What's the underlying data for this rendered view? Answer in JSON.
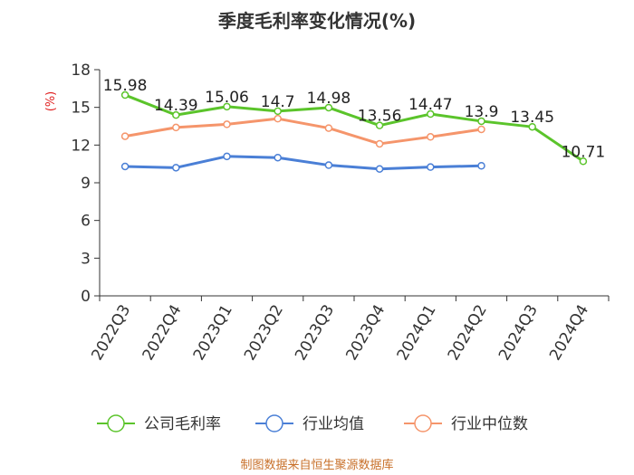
{
  "chart_data": {
    "type": "line",
    "title": "季度毛利率变化情况(%)",
    "ylabel": "(%)",
    "xlabel": "",
    "categories": [
      "2022Q3",
      "2022Q4",
      "2023Q1",
      "2023Q2",
      "2023Q3",
      "2023Q4",
      "2024Q1",
      "2024Q2",
      "2024Q3",
      "2024Q4"
    ],
    "ylim": [
      0,
      18
    ],
    "yticks": [
      0,
      3,
      6,
      9,
      12,
      15,
      18
    ],
    "grid": false,
    "legend_position": "bottom",
    "series": [
      {
        "name": "公司毛利率",
        "color": "#5bc42b",
        "values": [
          15.98,
          14.39,
          15.06,
          14.7,
          14.98,
          13.56,
          14.47,
          13.9,
          13.45,
          10.71
        ],
        "labels": [
          "15.98",
          "14.39",
          "15.06",
          "14.7",
          "14.98",
          "13.56",
          "14.47",
          "13.9",
          "13.45",
          "10.71"
        ],
        "show_labels": true
      },
      {
        "name": "行业均值",
        "color": "#4a7fd6",
        "values": [
          10.3,
          10.2,
          11.1,
          11.0,
          10.4,
          10.1,
          10.25,
          10.35,
          null,
          null
        ],
        "show_labels": false
      },
      {
        "name": "行业中位数",
        "color": "#f5956b",
        "values": [
          12.7,
          13.4,
          13.65,
          14.1,
          13.35,
          12.1,
          12.65,
          13.25,
          null,
          null
        ],
        "show_labels": false
      }
    ]
  },
  "source": "制图数据来自恒生聚源数据库"
}
